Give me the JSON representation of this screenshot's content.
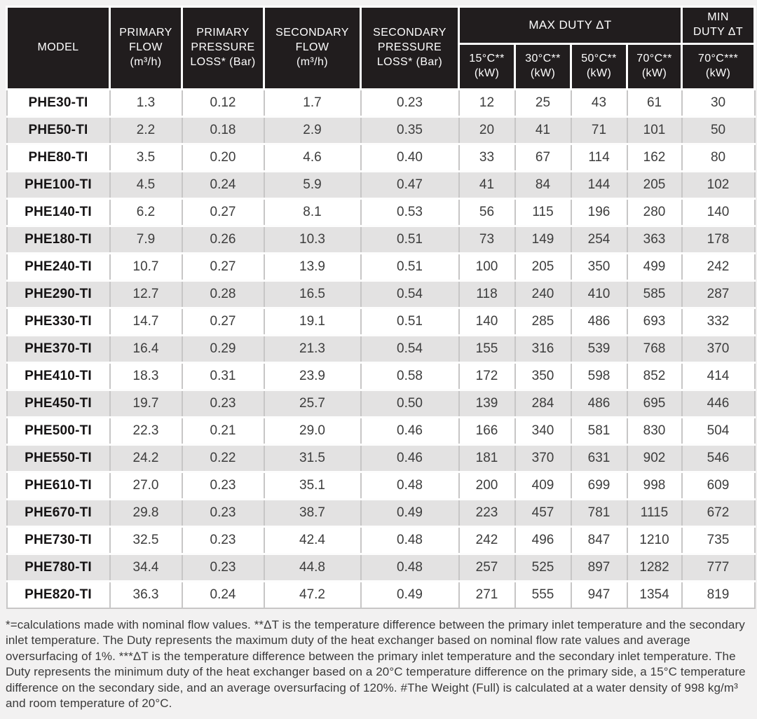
{
  "colors": {
    "header_bg": "#211d1e",
    "header_text": "#ffffff",
    "row_alt_bg": "#e3e2e2",
    "grid_line": "#c7c6c6",
    "page_bg": "#f2f1f1",
    "body_text": "#3d3d3d"
  },
  "table": {
    "headers": {
      "model": "MODEL",
      "primary_flow": "PRIMARY\nFLOW\n(m³/h)",
      "primary_pressure_loss": "PRIMARY\nPRESSURE\nLOSS* (Bar)",
      "secondary_flow": "SECONDARY\nFLOW\n(m³/h)",
      "secondary_pressure_loss": "SECONDARY\nPRESSURE\nLOSS* (Bar)",
      "max_duty": "MAX DUTY ΔT",
      "min_duty": "MIN\nDUTY ΔT",
      "max_duty_sub": [
        "15°C**\n(kW)",
        "30°C**\n(kW)",
        "50°C**\n(kW)",
        "70°C**\n(kW)"
      ],
      "min_duty_sub": "70°C***\n(kW)"
    },
    "rows": [
      [
        "PHE30-TI",
        "1.3",
        "0.12",
        "1.7",
        "0.23",
        "12",
        "25",
        "43",
        "61",
        "30"
      ],
      [
        "PHE50-TI",
        "2.2",
        "0.18",
        "2.9",
        "0.35",
        "20",
        "41",
        "71",
        "101",
        "50"
      ],
      [
        "PHE80-TI",
        "3.5",
        "0.20",
        "4.6",
        "0.40",
        "33",
        "67",
        "114",
        "162",
        "80"
      ],
      [
        "PHE100-TI",
        "4.5",
        "0.24",
        "5.9",
        "0.47",
        "41",
        "84",
        "144",
        "205",
        "102"
      ],
      [
        "PHE140-TI",
        "6.2",
        "0.27",
        "8.1",
        "0.53",
        "56",
        "115",
        "196",
        "280",
        "140"
      ],
      [
        "PHE180-TI",
        "7.9",
        "0.26",
        "10.3",
        "0.51",
        "73",
        "149",
        "254",
        "363",
        "178"
      ],
      [
        "PHE240-TI",
        "10.7",
        "0.27",
        "13.9",
        "0.51",
        "100",
        "205",
        "350",
        "499",
        "242"
      ],
      [
        "PHE290-TI",
        "12.7",
        "0.28",
        "16.5",
        "0.54",
        "118",
        "240",
        "410",
        "585",
        "287"
      ],
      [
        "PHE330-TI",
        "14.7",
        "0.27",
        "19.1",
        "0.51",
        "140",
        "285",
        "486",
        "693",
        "332"
      ],
      [
        "PHE370-TI",
        "16.4",
        "0.29",
        "21.3",
        "0.54",
        "155",
        "316",
        "539",
        "768",
        "370"
      ],
      [
        "PHE410-TI",
        "18.3",
        "0.31",
        "23.9",
        "0.58",
        "172",
        "350",
        "598",
        "852",
        "414"
      ],
      [
        "PHE450-TI",
        "19.7",
        "0.23",
        "25.7",
        "0.50",
        "139",
        "284",
        "486",
        "695",
        "446"
      ],
      [
        "PHE500-TI",
        "22.3",
        "0.21",
        "29.0",
        "0.46",
        "166",
        "340",
        "581",
        "830",
        "504"
      ],
      [
        "PHE550-TI",
        "24.2",
        "0.22",
        "31.5",
        "0.46",
        "181",
        "370",
        "631",
        "902",
        "546"
      ],
      [
        "PHE610-TI",
        "27.0",
        "0.23",
        "35.1",
        "0.48",
        "200",
        "409",
        "699",
        "998",
        "609"
      ],
      [
        "PHE670-TI",
        "29.8",
        "0.23",
        "38.7",
        "0.49",
        "223",
        "457",
        "781",
        "1115",
        "672"
      ],
      [
        "PHE730-TI",
        "32.5",
        "0.23",
        "42.4",
        "0.48",
        "242",
        "496",
        "847",
        "1210",
        "735"
      ],
      [
        "PHE780-TI",
        "34.4",
        "0.23",
        "44.8",
        "0.48",
        "257",
        "525",
        "897",
        "1282",
        "777"
      ],
      [
        "PHE820-TI",
        "36.3",
        "0.24",
        "47.2",
        "0.49",
        "271",
        "555",
        "947",
        "1354",
        "819"
      ]
    ]
  },
  "footnote": "*=calculations made with nominal flow values. **ΔT is the temperature difference between the primary inlet temperature and the secondary inlet temperature. The Duty represents the maximum duty of the heat exchanger based on nominal flow rate values and average oversurfacing of 1%. ***ΔT is the temperature difference between the primary inlet temperature and the secondary inlet temperature. The Duty represents the minimum duty of the heat exchanger based on a 20°C temperature difference on the primary side, a 15°C temperature difference on the secondary side, and an average oversurfacing of 120%. #The Weight (Full) is calculated at a water density of 998 kg/m³ and room temperature of 20°C."
}
